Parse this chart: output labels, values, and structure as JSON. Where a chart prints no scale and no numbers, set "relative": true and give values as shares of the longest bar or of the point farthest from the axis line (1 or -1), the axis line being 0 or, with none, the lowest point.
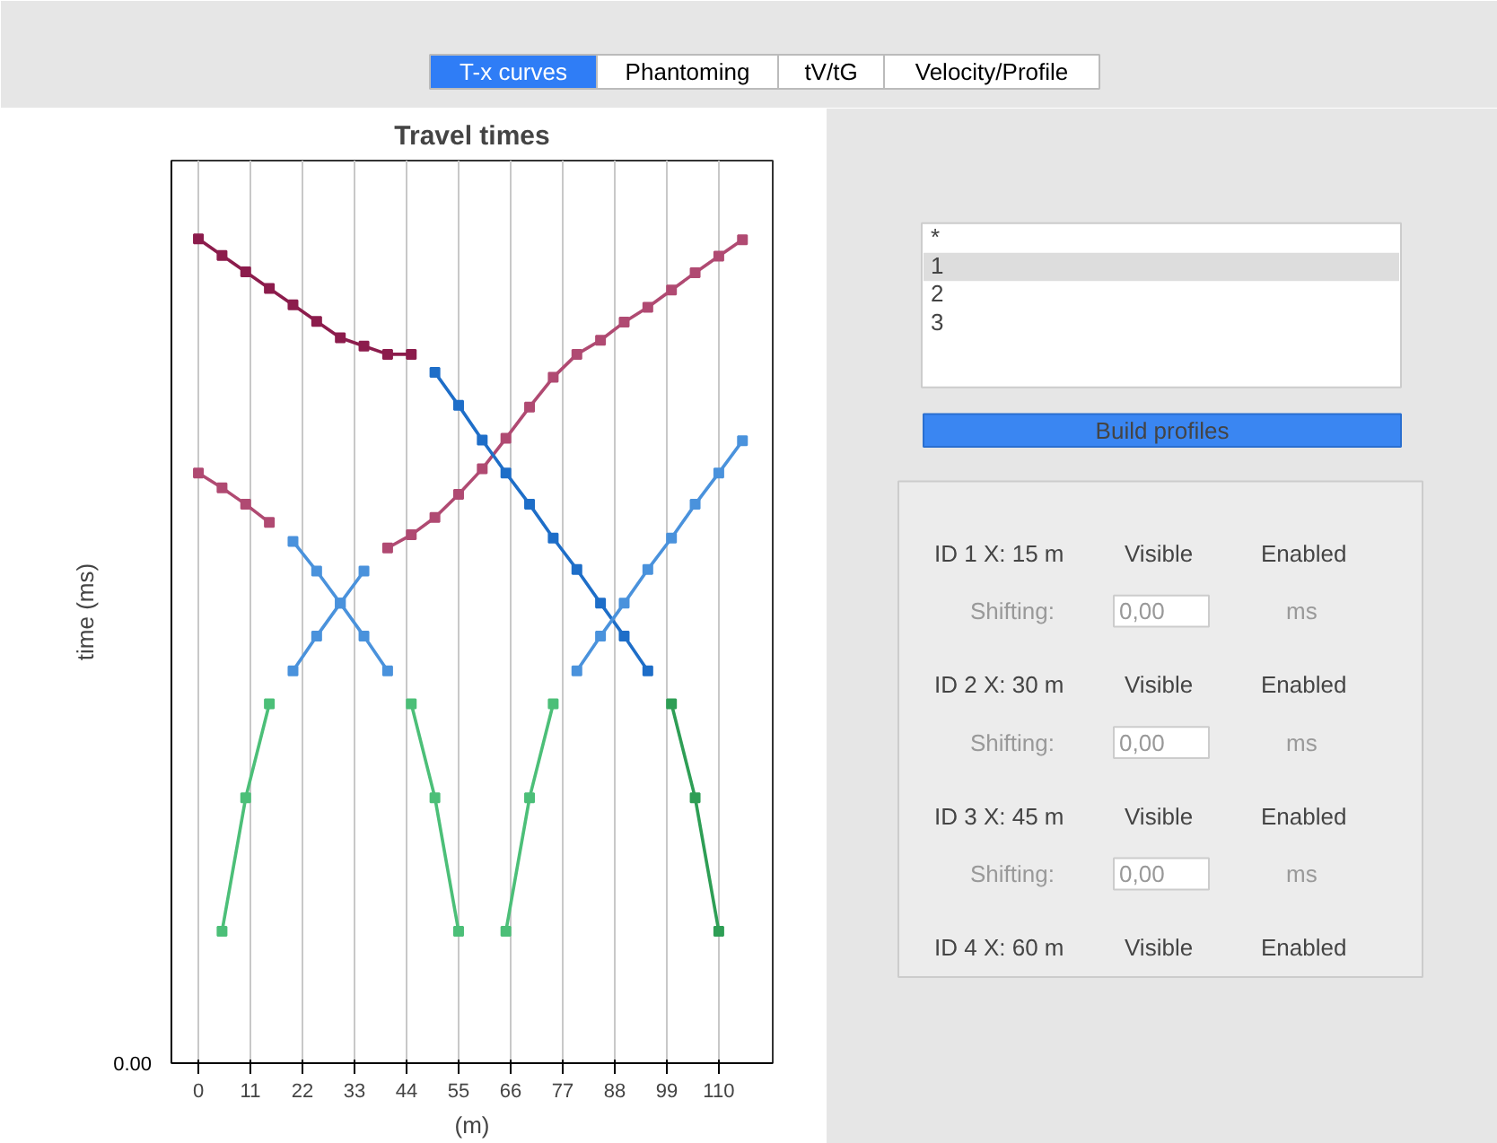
{
  "chart_data": [
    {
      "type": "line",
      "title": "Travel times",
      "xlabel": "(m)",
      "ylabel": "time (ms)",
      "relative": true,
      "marker": "square",
      "line_style": "solid",
      "grid": "x",
      "xlim": [
        -5.7,
        121.4
      ],
      "xticks": [
        0,
        11,
        22,
        33,
        44,
        55,
        66,
        77,
        88,
        99,
        110
      ],
      "annotations": [
        "0.00"
      ],
      "series": [
        {
          "color": "#8c1c4c",
          "x": [
            0,
            5,
            10,
            15,
            20,
            25,
            30,
            35,
            40,
            45
          ],
          "values": [
            1.0,
            0.98,
            0.96,
            0.94,
            0.92,
            0.9,
            0.88,
            0.87,
            0.86,
            0.86
          ]
        },
        {
          "color": "#b04a72",
          "x": [
            0,
            5,
            10,
            15
          ],
          "values": [
            0.716,
            0.698,
            0.678,
            0.656
          ]
        },
        {
          "color": "#b04a72",
          "x": [
            40,
            45,
            50,
            55,
            60,
            65,
            70,
            75,
            80,
            85,
            90,
            95,
            100,
            105,
            110,
            115
          ],
          "values": [
            0.625,
            0.641,
            0.662,
            0.69,
            0.721,
            0.758,
            0.796,
            0.832,
            0.86,
            0.877,
            0.899,
            0.917,
            0.938,
            0.959,
            0.979,
            0.999
          ]
        },
        {
          "color": "#1e6ec8",
          "x": [
            50,
            55,
            60,
            65,
            70,
            75,
            80,
            85,
            90,
            95
          ],
          "values": [
            0.838,
            0.798,
            0.756,
            0.716,
            0.678,
            0.637,
            0.599,
            0.558,
            0.518,
            0.476
          ]
        },
        {
          "color": "#4a92dc",
          "x": [
            80,
            85,
            90,
            95,
            100,
            105,
            110,
            115
          ],
          "values": [
            0.476,
            0.518,
            0.558,
            0.599,
            0.637,
            0.678,
            0.716,
            0.755
          ]
        },
        {
          "color": "#4a92dc",
          "x": [
            20,
            25,
            30,
            35,
            40
          ],
          "values": [
            0.633,
            0.597,
            0.558,
            0.518,
            0.476
          ]
        },
        {
          "color": "#4a92dc",
          "x": [
            20,
            25,
            30,
            35
          ],
          "values": [
            0.476,
            0.518,
            0.558,
            0.597
          ]
        },
        {
          "color": "#4cbf78",
          "x": [
            5,
            10,
            15
          ],
          "values": [
            0.16,
            0.322,
            0.436
          ]
        },
        {
          "color": "#4cbf78",
          "x": [
            45,
            50,
            55
          ],
          "values": [
            0.436,
            0.322,
            0.16
          ]
        },
        {
          "color": "#4cbf78",
          "x": [
            65,
            70,
            75
          ],
          "values": [
            0.16,
            0.322,
            0.436
          ]
        },
        {
          "color": "#2e9e55",
          "x": [
            100,
            105,
            110
          ],
          "values": [
            0.436,
            0.322,
            0.16
          ]
        }
      ]
    },
    {
      "type": "other",
      "annotations": [
        "T-x curves",
        "Phantoming",
        "tV/tG",
        "Velocity/Profile",
        "*",
        "1",
        "2",
        "3",
        "Build profiles",
        "ID 1 X: 15 m",
        "Visible",
        "Enabled",
        "Shifting:",
        "0,00",
        "ms",
        "ID 2 X: 30 m",
        "Visible",
        "Enabled",
        "Shifting:",
        "0,00",
        "ms",
        "ID 3 X: 45 m",
        "Visible",
        "Enabled",
        "Shifting:",
        "0,00",
        "ms",
        "ID 4 X: 60 m",
        "Visible",
        "Enabled"
      ]
    }
  ]
}
